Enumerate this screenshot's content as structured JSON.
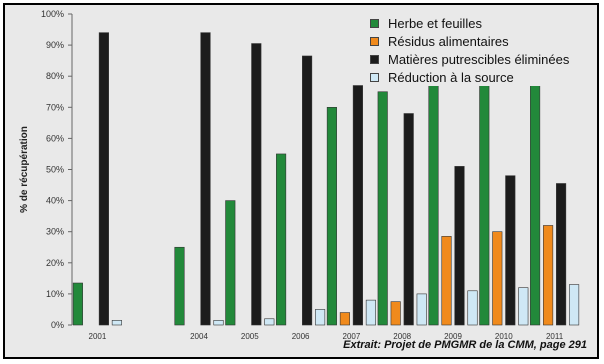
{
  "chart_data": {
    "type": "bar",
    "ylabel": "% de récupération",
    "ylim": [
      0,
      100
    ],
    "ytick_step": 10,
    "ytick_labels": [
      "0%",
      "10%",
      "20%",
      "30%",
      "40%",
      "50%",
      "60%",
      "70%",
      "80%",
      "90%",
      "100%"
    ],
    "grid": false,
    "legend_position": "top-right",
    "category_slots": [
      "2001",
      "",
      "2004",
      "2005",
      "2006",
      "2007",
      "2008",
      "2009",
      "2010",
      "2011"
    ],
    "series": [
      {
        "name": "Herbe et feuilles",
        "color": "#22893a",
        "values": [
          13.5,
          null,
          25,
          40,
          55,
          70,
          75,
          78,
          80,
          80
        ]
      },
      {
        "name": "Résidus alimentaires",
        "color": "#f08a1c",
        "values": [
          0,
          null,
          0,
          0,
          0,
          4,
          7.5,
          28.5,
          30,
          32
        ]
      },
      {
        "name": "Matières putrescibles éliminées",
        "color": "#1c1c1c",
        "values": [
          94,
          null,
          94,
          90.5,
          86.5,
          77,
          68,
          51,
          48,
          45.5
        ]
      },
      {
        "name": "Réduction à la source",
        "color": "#cfe8f5",
        "values": [
          1.5,
          null,
          1.5,
          2,
          5,
          8,
          10,
          11,
          12,
          13
        ]
      }
    ]
  },
  "credit": "Extrait: Projet  de PMGMR de la CMM, page 291"
}
